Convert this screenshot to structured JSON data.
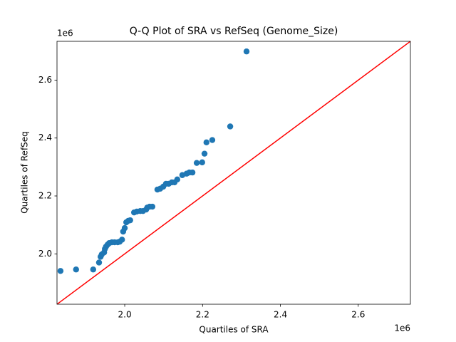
{
  "chart_data": {
    "type": "scatter",
    "title": "Q-Q Plot of SRA vs RefSeq (Genome_Size)",
    "xlabel": "Quartiles of SRA",
    "ylabel": "Quartiles of RefSeq",
    "x_offset_text": "1e6",
    "y_offset_text": "1e6",
    "color": "#1f77b4",
    "reference_line_color": "#ff0000",
    "xlim": [
      1.826,
      2.734
    ],
    "ylim": [
      1.826,
      2.734
    ],
    "xticks": [
      {
        "value": 2.0,
        "label": "2.0"
      },
      2.2,
      2.4,
      2.6
    ],
    "yticks": [
      {
        "value": 2.0,
        "label": "2.0"
      },
      2.2,
      2.4,
      2.6
    ],
    "x": [
      1.835,
      1.875,
      1.919,
      1.934,
      1.938,
      1.941,
      1.947,
      1.949,
      1.952,
      1.956,
      1.96,
      1.967,
      1.974,
      1.982,
      1.987,
      1.993,
      1.996,
      2.0,
      2.004,
      2.009,
      2.014,
      2.024,
      2.031,
      2.04,
      2.047,
      2.055,
      2.058,
      2.064,
      2.071,
      2.084,
      2.091,
      2.099,
      2.106,
      2.113,
      2.121,
      2.128,
      2.135,
      2.148,
      2.159,
      2.166,
      2.174,
      2.185,
      2.199,
      2.205,
      2.21,
      2.225,
      2.271,
      2.313
    ],
    "y": [
      1.941,
      1.946,
      1.946,
      1.97,
      1.99,
      1.998,
      2.005,
      2.017,
      2.025,
      2.032,
      2.037,
      2.04,
      2.04,
      2.04,
      2.042,
      2.049,
      2.077,
      2.089,
      2.109,
      2.114,
      2.116,
      2.143,
      2.146,
      2.148,
      2.148,
      2.153,
      2.16,
      2.163,
      2.163,
      2.222,
      2.225,
      2.232,
      2.242,
      2.242,
      2.247,
      2.247,
      2.257,
      2.272,
      2.277,
      2.281,
      2.281,
      2.314,
      2.316,
      2.346,
      2.385,
      2.393,
      2.44,
      2.699
    ]
  }
}
